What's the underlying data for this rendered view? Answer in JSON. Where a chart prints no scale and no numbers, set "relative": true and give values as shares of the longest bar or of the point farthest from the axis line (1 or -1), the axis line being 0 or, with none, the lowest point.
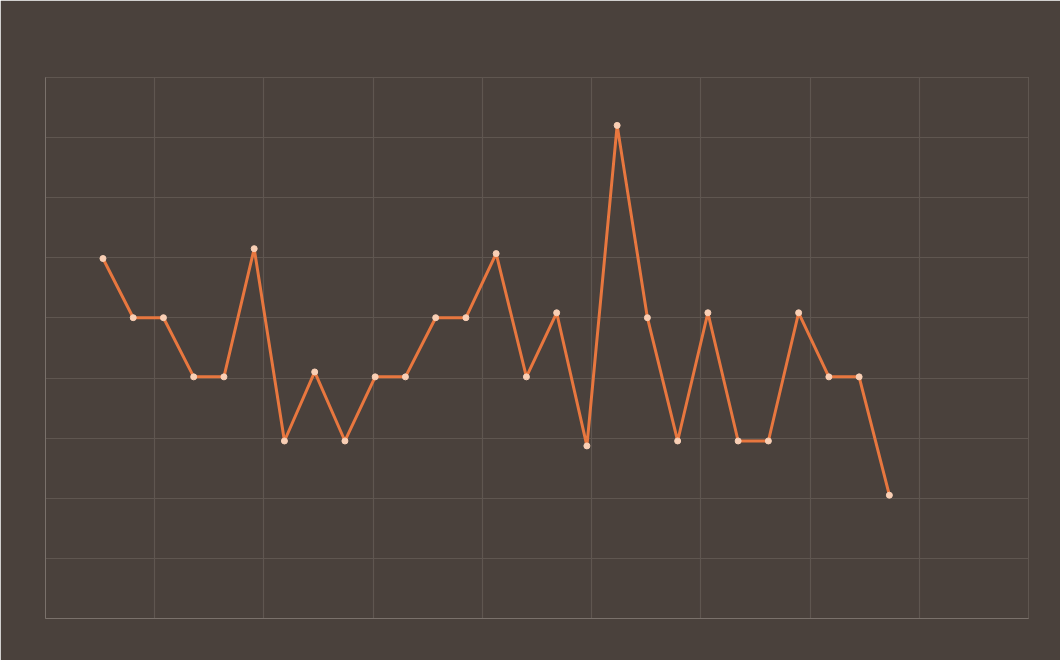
{
  "chart_data": {
    "type": "line",
    "relative": true,
    "marker": "circle",
    "grid": true,
    "categories": [
      null,
      null,
      null,
      null,
      null,
      null,
      null,
      null,
      null,
      null,
      null,
      null,
      null,
      null,
      null,
      null,
      null,
      null,
      null,
      null,
      null,
      null,
      null,
      null,
      null,
      null,
      null
    ],
    "series": [
      {
        "color": "#e8773f",
        "values": [
          0.73,
          0.61,
          0.61,
          0.49,
          0.49,
          0.75,
          0.36,
          0.5,
          0.36,
          0.49,
          0.49,
          0.61,
          0.61,
          0.74,
          0.49,
          0.62,
          0.35,
          1,
          0.61,
          0.36,
          0.62,
          0.36,
          0.36,
          0.62,
          0.49,
          0.49,
          0.25
        ]
      }
    ]
  }
}
